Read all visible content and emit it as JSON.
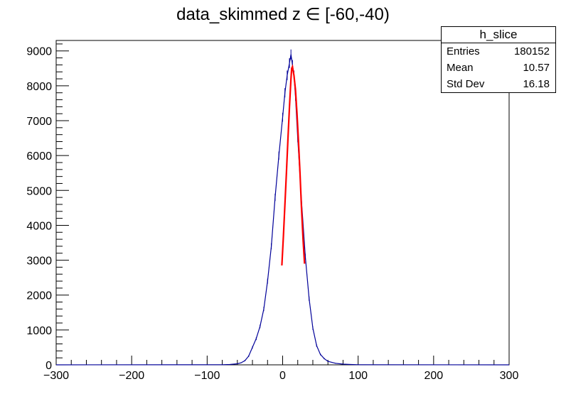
{
  "title": "data_skimmed z  ∈ [-60,-40)",
  "stats": {
    "name": "h_slice",
    "rows": [
      {
        "label": "Entries",
        "value": "180152"
      },
      {
        "label": "Mean",
        "value": "10.57"
      },
      {
        "label": "Std Dev",
        "value": "16.18"
      }
    ]
  },
  "chart_data": {
    "type": "line",
    "title": "data_skimmed z  ∈ [-60,-40)",
    "xlabel": "",
    "ylabel": "",
    "xlim": [
      -300,
      300
    ],
    "ylim": [
      0,
      9300
    ],
    "xticks": [
      -300,
      -200,
      -100,
      0,
      100,
      200,
      300
    ],
    "yticks": [
      0,
      1000,
      2000,
      3000,
      4000,
      5000,
      6000,
      7000,
      8000,
      9000
    ],
    "grid": false,
    "series": [
      {
        "color": "#000099",
        "x": [
          -80,
          -70,
          -60,
          -55,
          -50,
          -45,
          -40,
          -35,
          -30,
          -25,
          -20,
          -15,
          -10,
          -5,
          0,
          3,
          6,
          9,
          11,
          13,
          15,
          17,
          20,
          25,
          30,
          35,
          40,
          45,
          50,
          55,
          60,
          70,
          80,
          90,
          100
        ],
        "y": [
          5,
          10,
          30,
          60,
          120,
          250,
          500,
          750,
          1100,
          1600,
          2400,
          3400,
          4800,
          6000,
          7100,
          7800,
          8300,
          8650,
          8900,
          8600,
          8300,
          7700,
          6500,
          4700,
          3100,
          1900,
          1050,
          550,
          300,
          180,
          100,
          45,
          20,
          10,
          5
        ]
      },
      {
        "color": "#ff0000",
        "x": [
          -1,
          1,
          3,
          5,
          7,
          9,
          11,
          12,
          13,
          15,
          17,
          19,
          21,
          23,
          25,
          27,
          29
        ],
        "y": [
          2850,
          3700,
          4600,
          5500,
          6450,
          7400,
          8200,
          8500,
          8550,
          8300,
          7900,
          7200,
          6400,
          5500,
          4500,
          3600,
          2900
        ]
      }
    ]
  }
}
